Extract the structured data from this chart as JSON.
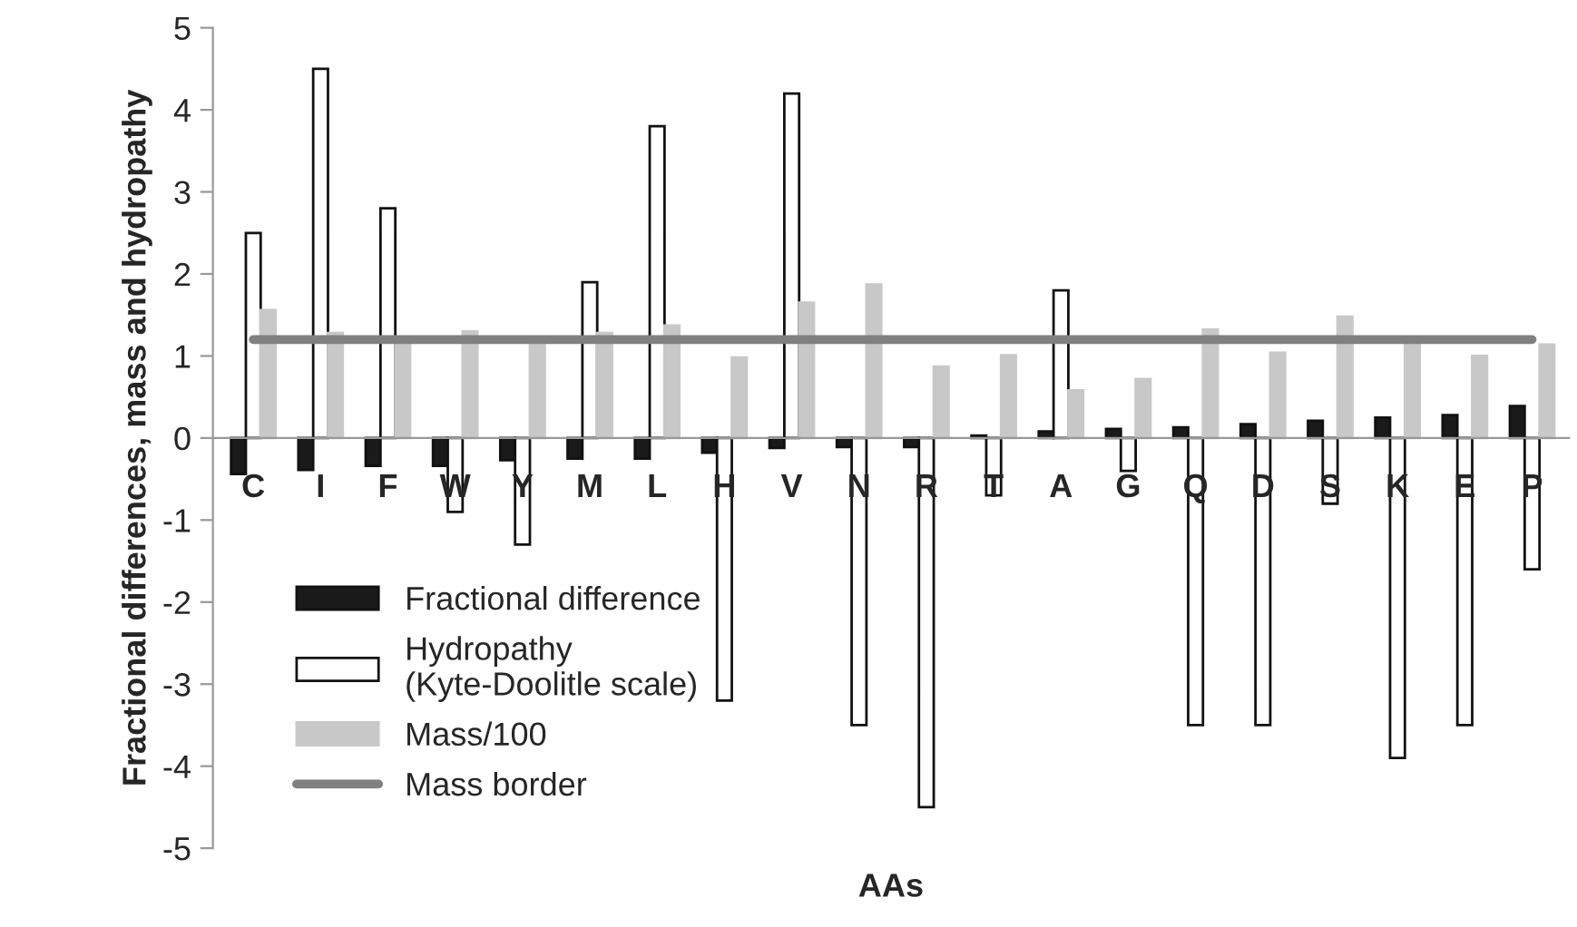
{
  "chart_data": {
    "type": "bar",
    "xlabel": "AAs",
    "ylabel": "Fractional differences, mass and hydropathy",
    "categories": [
      "C",
      "I",
      "F",
      "W",
      "Y",
      "M",
      "L",
      "H",
      "V",
      "N",
      "R",
      "T",
      "A",
      "G",
      "Q",
      "D",
      "S",
      "K",
      "E",
      "P"
    ],
    "series": [
      {
        "name": "Fractional difference",
        "color": "#1a1a1a",
        "values": [
          -0.44,
          -0.39,
          -0.34,
          -0.34,
          -0.27,
          -0.25,
          -0.25,
          -0.18,
          -0.12,
          -0.11,
          -0.11,
          0.03,
          0.08,
          0.11,
          0.13,
          0.17,
          0.21,
          0.25,
          0.28,
          0.39
        ]
      },
      {
        "name": "Hydropathy\n(Kyte-Doolitle scale)",
        "color": "#ffffff",
        "values": [
          2.5,
          4.5,
          2.8,
          -0.9,
          -1.3,
          1.9,
          3.8,
          -3.2,
          4.2,
          -3.5,
          -4.5,
          -0.7,
          1.8,
          -0.4,
          -3.5,
          -3.5,
          -0.8,
          -3.9,
          -3.5,
          -1.6
        ]
      },
      {
        "name": "Mass/100",
        "color": "#c8c8c8",
        "values": [
          1.56,
          1.28,
          1.14,
          1.3,
          1.14,
          1.28,
          1.37,
          0.98,
          1.65,
          1.87,
          0.87,
          1.01,
          0.58,
          0.72,
          1.32,
          1.04,
          1.48,
          1.14,
          1.0,
          1.14
        ]
      },
      {
        "name": "Mass border",
        "type": "line",
        "color": "#808080",
        "values": [
          1.2,
          1.2,
          1.2,
          1.2,
          1.2,
          1.2,
          1.2,
          1.2,
          1.2,
          1.2,
          1.2,
          1.2,
          1.2,
          1.2,
          1.2,
          1.2,
          1.2,
          1.2,
          1.2,
          1.2
        ]
      }
    ],
    "ylim": [
      -5,
      5
    ],
    "yticks": [
      -5,
      -4,
      -3,
      -2,
      -1,
      0,
      1,
      2,
      3,
      4,
      5
    ],
    "grid": false,
    "legend": "bottom left"
  }
}
